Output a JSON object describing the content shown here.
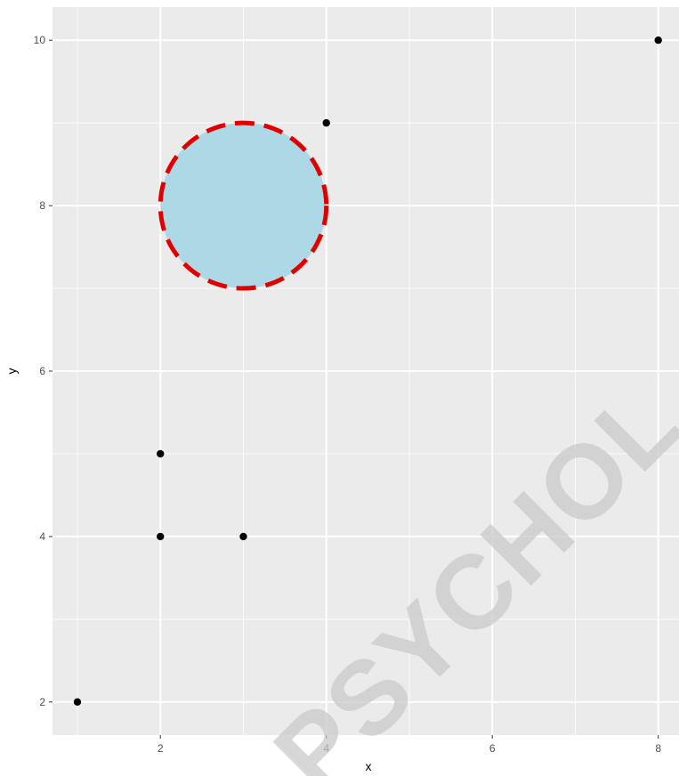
{
  "chart_data": {
    "type": "scatter",
    "xlabel": "x",
    "ylabel": "y",
    "xlim": [
      0.7,
      8.25
    ],
    "ylim": [
      1.6,
      10.4
    ],
    "x_ticks": [
      2,
      4,
      6,
      8
    ],
    "y_ticks": [
      2,
      4,
      6,
      8,
      10
    ],
    "x_minor_ticks": [
      1,
      3,
      5,
      7
    ],
    "y_minor_ticks": [
      3,
      5,
      7,
      9
    ],
    "grid": true,
    "points": [
      {
        "x": 1,
        "y": 2
      },
      {
        "x": 2,
        "y": 4
      },
      {
        "x": 2,
        "y": 5
      },
      {
        "x": 3,
        "y": 4
      },
      {
        "x": 4,
        "y": 9
      },
      {
        "x": 8,
        "y": 10
      }
    ],
    "annotation_circle": {
      "center_x": 3,
      "center_y": 8,
      "radius": 1,
      "fill_color": "#add8e6",
      "stroke_color": "#e00000",
      "linetype": "dashed"
    },
    "colors": {
      "panel_background": "#ebebeb",
      "gridline": "#ffffff",
      "point": "#000000"
    }
  },
  "watermark": {
    "text": "PSYCHOL"
  }
}
